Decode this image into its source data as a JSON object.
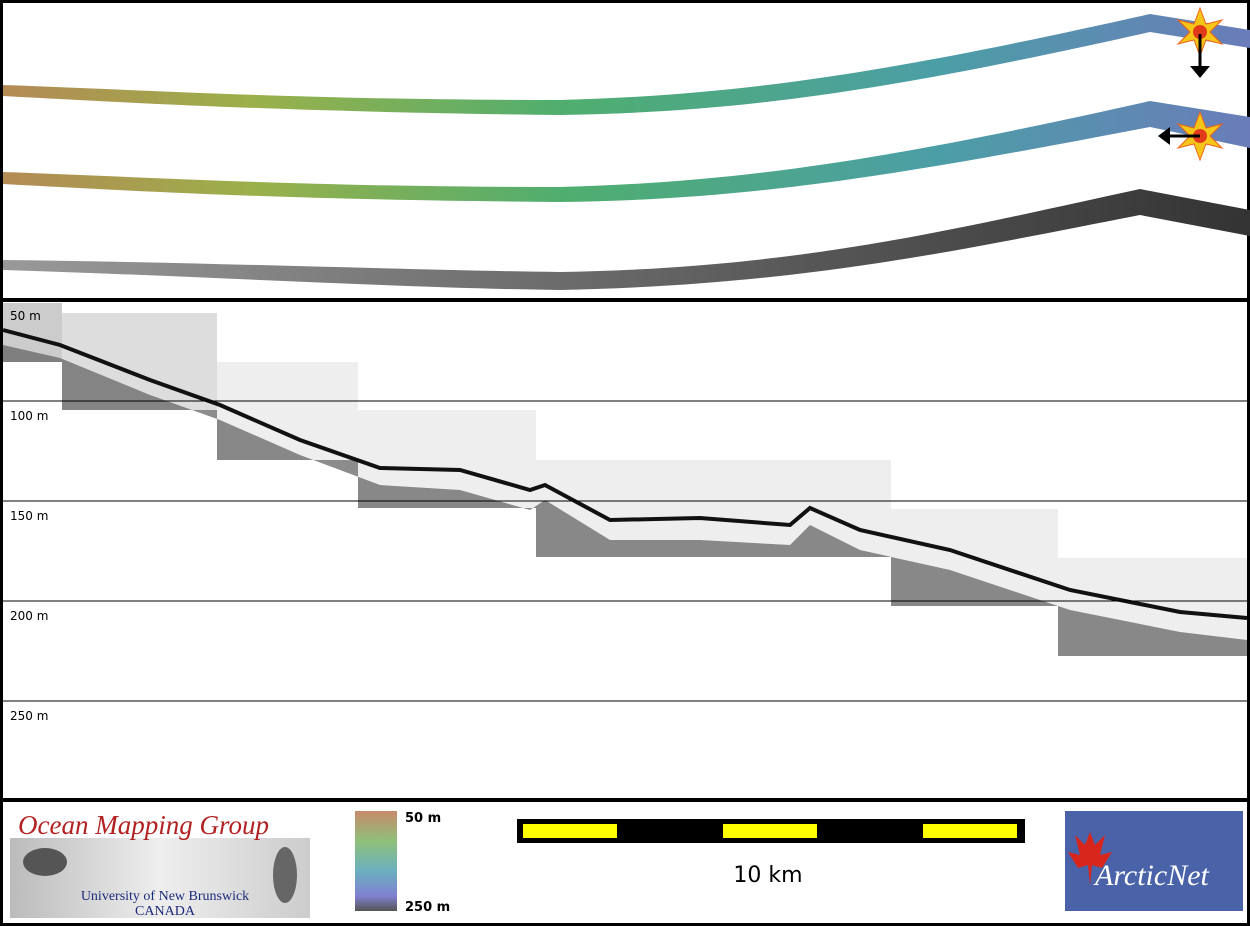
{
  "profile": {
    "depth_labels": [
      "50 m",
      "100 m",
      "150 m",
      "200 m",
      "250 m"
    ]
  },
  "footer": {
    "logo_title": "Ocean Mapping Group",
    "logo_university": "University of New Brunswick",
    "logo_country": "CANADA",
    "colorbar_top": "50 m",
    "colorbar_bottom": "250 m",
    "scale_label": "10 km",
    "partner_logo": "ArcticNet"
  }
}
